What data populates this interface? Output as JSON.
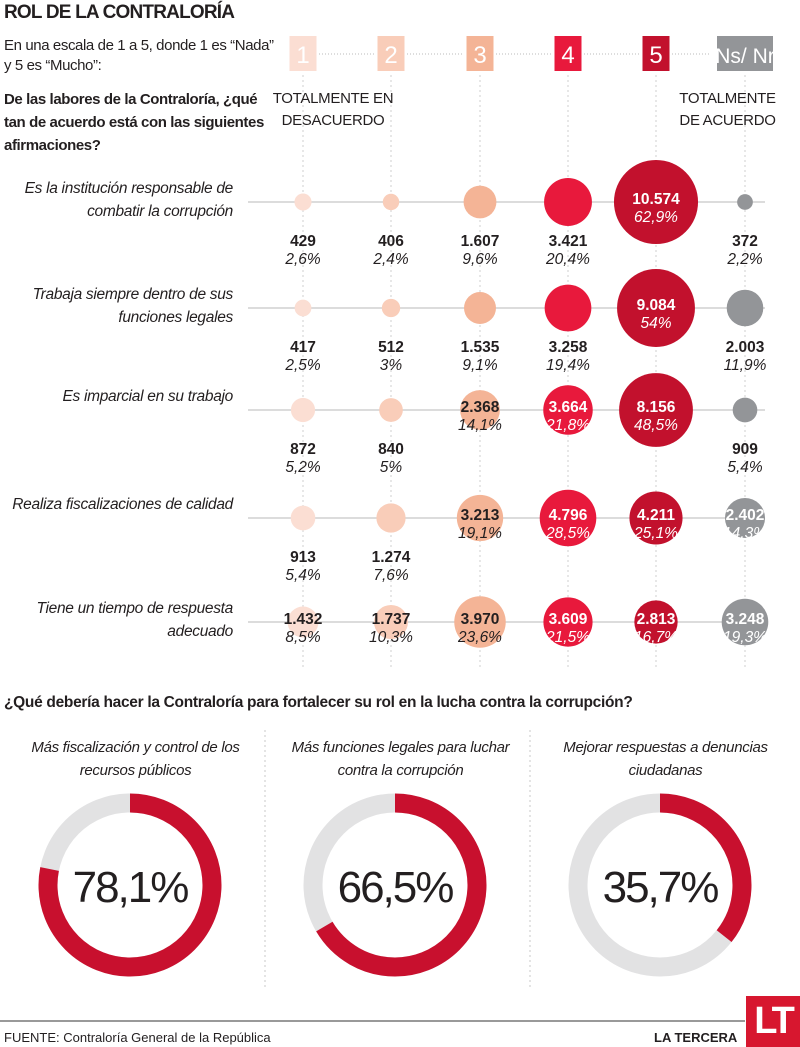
{
  "header": {
    "title": "ROL DE LA CONTRALORÍA",
    "intro": "En una escala de 1 a 5, donde 1 es “Nada” y 5 es “Mucho”:",
    "question": "De las labores de la Contraloría, ¿qué tan de acuerdo está con las siguientes afirmaciones?",
    "left_extreme": "TOTALMENTE EN DESACUERDO",
    "right_extreme": "TOTALMENTE DE ACUERDO"
  },
  "chart_data": [
    {
      "type": "bubble-matrix",
      "categories": [
        "1",
        "2",
        "3",
        "4",
        "5",
        "Ns/ Nr"
      ],
      "colors": [
        "#fbded3",
        "#f9cdb9",
        "#f4b496",
        "#e8193c",
        "#c2112d",
        "#939598"
      ],
      "rows": [
        {
          "label": "Es la institución responsable de combatir la corrupción",
          "counts": [
            "429",
            "406",
            "1.607",
            "3.421",
            "10.574",
            "372"
          ],
          "percents": [
            2.6,
            2.4,
            9.6,
            20.4,
            62.9,
            2.2
          ],
          "percent_labels": [
            "2,6%",
            "2,4%",
            "9,6%",
            "20,4%",
            "62,9%",
            "2,2%"
          ]
        },
        {
          "label": "Trabaja siempre dentro de sus funciones legales",
          "counts": [
            "417",
            "512",
            "1.535",
            "3.258",
            "9.084",
            "2.003"
          ],
          "percents": [
            2.5,
            3,
            9.1,
            19.4,
            54,
            11.9
          ],
          "percent_labels": [
            "2,5%",
            "3%",
            "9,1%",
            "19,4%",
            "54%",
            "11,9%"
          ]
        },
        {
          "label": "Es imparcial en su trabajo",
          "counts": [
            "872",
            "840",
            "2.368",
            "3.664",
            "8.156",
            "909"
          ],
          "percents": [
            5.2,
            5,
            14.1,
            21.8,
            48.5,
            5.4
          ],
          "percent_labels": [
            "5,2%",
            "5%",
            "14,1%",
            "21,8%",
            "48,5%",
            "5,4%"
          ]
        },
        {
          "label": "Realiza fiscalizaciones de calidad",
          "counts": [
            "913",
            "1.274",
            "3.213",
            "4.796",
            "4.211",
            "2.402"
          ],
          "percents": [
            5.4,
            7.6,
            19.1,
            28.5,
            25.1,
            14.3
          ],
          "percent_labels": [
            "5,4%",
            "7,6%",
            "19,1%",
            "28,5%",
            "25,1%",
            "14,3%"
          ]
        },
        {
          "label": "Tiene un tiempo de respuesta adecuado",
          "counts": [
            "1.432",
            "1.737",
            "3.970",
            "3.609",
            "2.813",
            "3.248"
          ],
          "percents": [
            8.5,
            10.3,
            23.6,
            21.5,
            16.7,
            19.3
          ],
          "percent_labels": [
            "8,5%",
            "10,3%",
            "23,6%",
            "21,5%",
            "16,7%",
            "19,3%"
          ]
        }
      ]
    },
    {
      "type": "donut",
      "title": "¿Qué debería hacer la Contraloría para fortalecer su rol en la lucha contra la corrupción?",
      "colors": {
        "value": "#c8102e",
        "rest": "#e2e2e3"
      },
      "items": [
        {
          "label": "Más fiscalización y control de los recursos públicos",
          "value": 78.1,
          "value_label": "78,1%"
        },
        {
          "label": "Más funciones legales para luchar contra la corrupción",
          "value": 66.5,
          "value_label": "66,5%"
        },
        {
          "label": "Mejorar respuestas a denuncias ciudadanas",
          "value": 35.7,
          "value_label": "35,7%"
        }
      ]
    }
  ],
  "footer": {
    "source_prefix": "FUENTE:",
    "source": " Contraloría General de la República",
    "brand": "LA TERCERA",
    "logo": "LT"
  }
}
